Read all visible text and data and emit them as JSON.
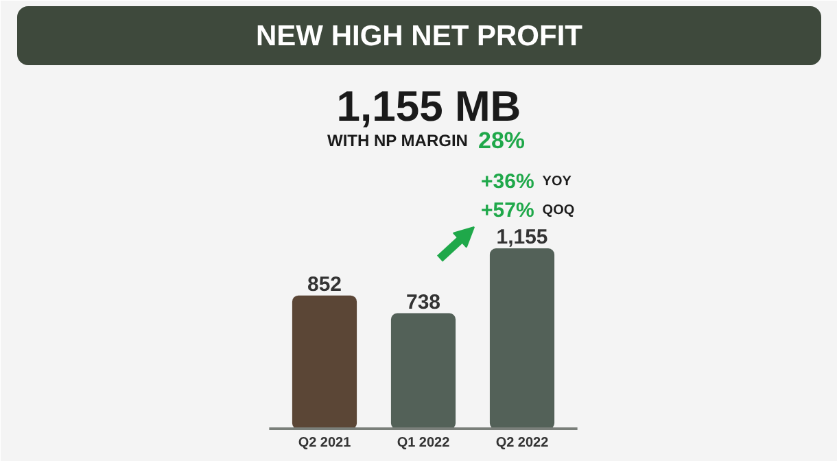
{
  "chart_data": {
    "type": "bar",
    "title": "NEW HIGH NET PROFIT",
    "annotations": [
      "1,155 MB",
      "WITH NP MARGIN 28%",
      "+36% YOY",
      "+57% QOQ"
    ],
    "categories": [
      "Q2 2021",
      "Q1 2022",
      "Q2 2022"
    ],
    "values": [
      852,
      738,
      1155
    ],
    "colors": [
      "#5b4636",
      "#536158",
      "#536158"
    ],
    "value_labels": [
      "852",
      "738",
      "1,155"
    ],
    "grid": false
  }
}
